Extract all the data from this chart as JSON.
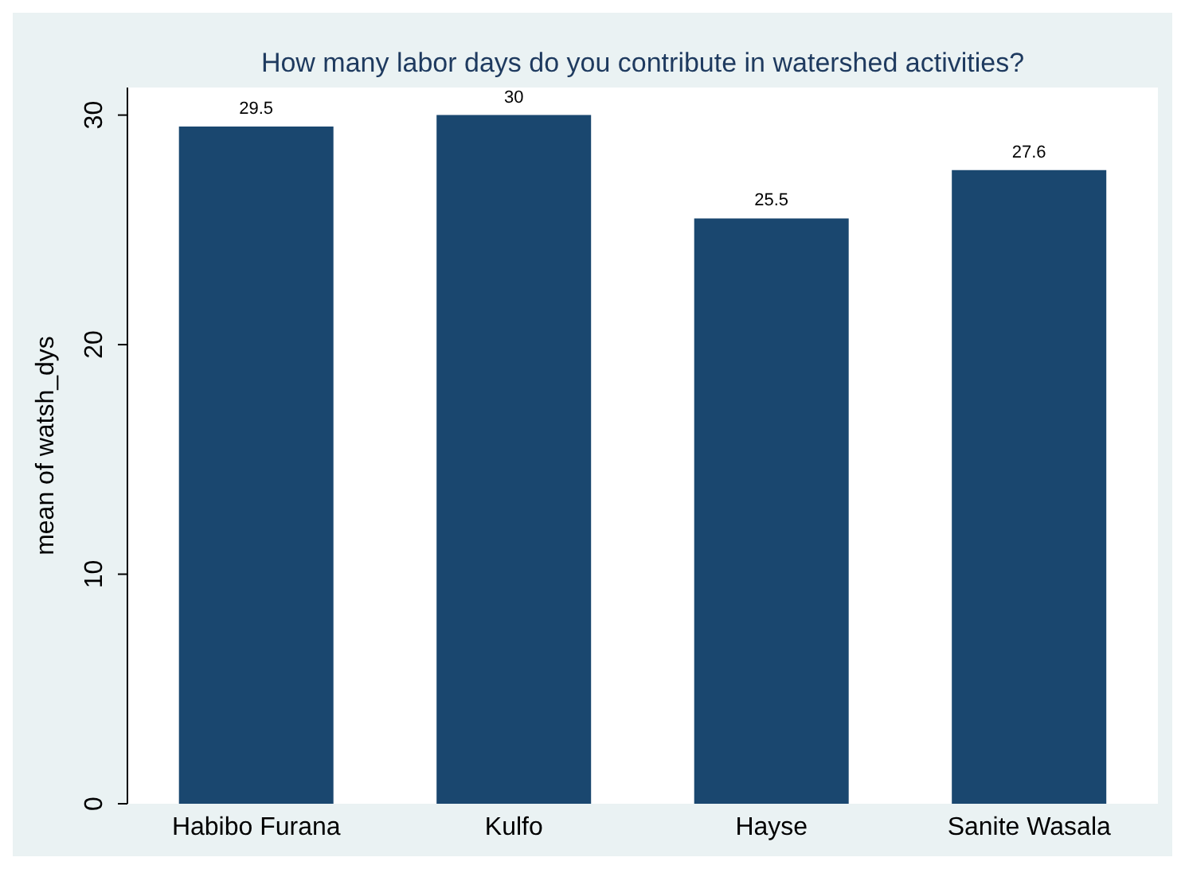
{
  "chart_data": {
    "type": "bar",
    "title": "How many labor days do you contribute in watershed activities?",
    "ylabel": "mean of watsh_dys",
    "categories": [
      "Habibo Furana",
      "Kulfo",
      "Hayse",
      "Sanite Wasala"
    ],
    "values": [
      29.5,
      30,
      25.5,
      27.6
    ],
    "color": "#1a476f",
    "ylim": [
      0,
      31.2
    ],
    "yticks": [
      0,
      10,
      20,
      30
    ],
    "grid": false,
    "data_labels": true
  }
}
